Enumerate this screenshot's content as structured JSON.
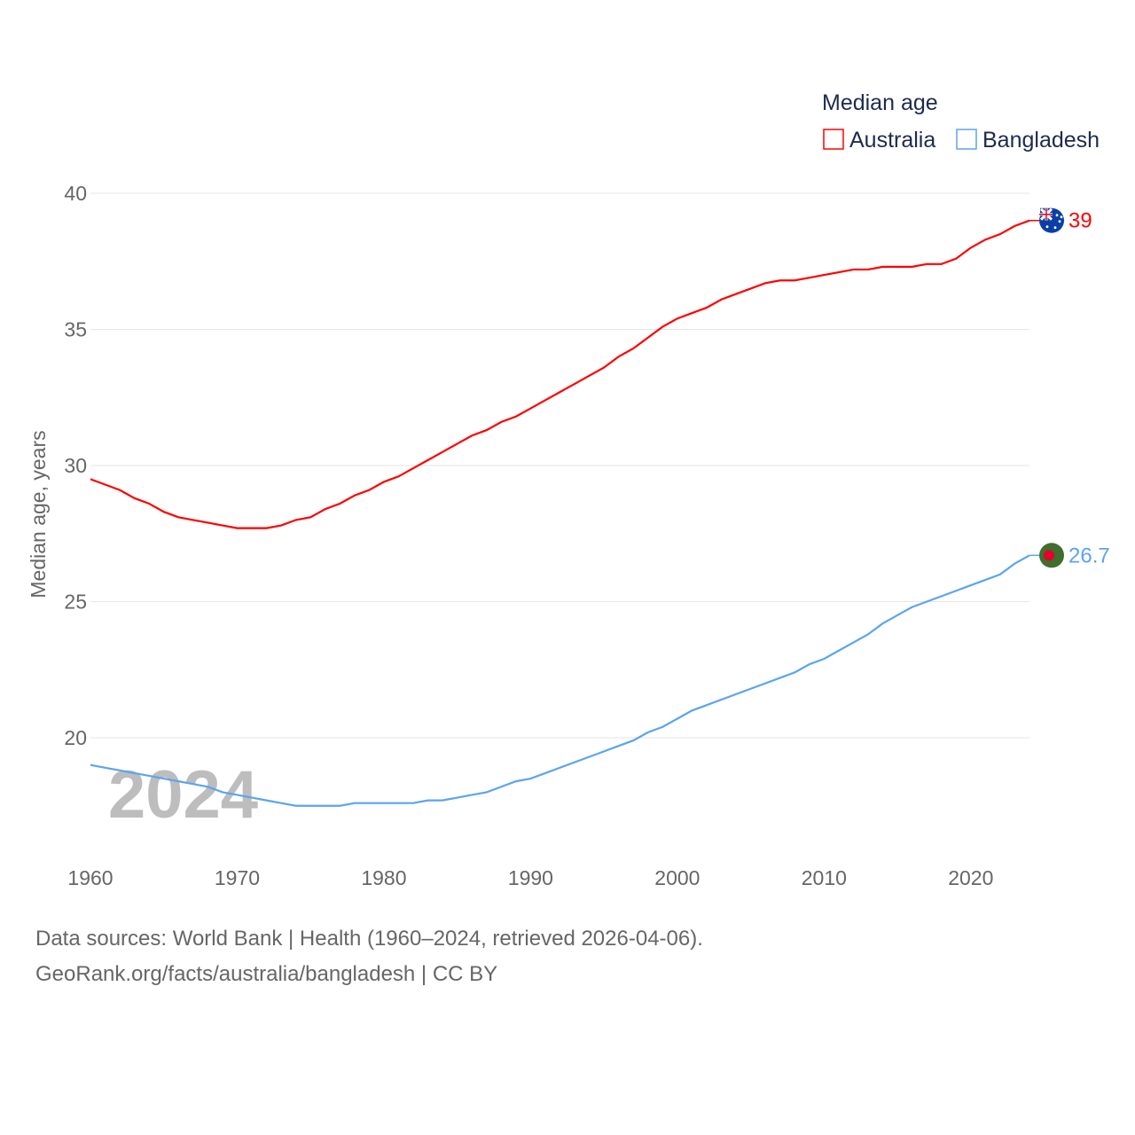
{
  "chart_data": {
    "type": "line",
    "title": "Median age",
    "xlabel": "",
    "ylabel": "Median age, years",
    "xlim": [
      1960,
      2024
    ],
    "ylim": [
      17,
      40
    ],
    "yticks": [
      20,
      25,
      30,
      35,
      40
    ],
    "xticks": [
      1960,
      1970,
      1980,
      1990,
      2000,
      2010,
      2020
    ],
    "grid": true,
    "legend_position": "top-right",
    "year_label": "2024",
    "x": [
      1960,
      1961,
      1962,
      1963,
      1964,
      1965,
      1966,
      1967,
      1968,
      1969,
      1970,
      1971,
      1972,
      1973,
      1974,
      1975,
      1976,
      1977,
      1978,
      1979,
      1980,
      1981,
      1982,
      1983,
      1984,
      1985,
      1986,
      1987,
      1988,
      1989,
      1990,
      1991,
      1992,
      1993,
      1994,
      1995,
      1996,
      1997,
      1998,
      1999,
      2000,
      2001,
      2002,
      2003,
      2004,
      2005,
      2006,
      2007,
      2008,
      2009,
      2010,
      2011,
      2012,
      2013,
      2014,
      2015,
      2016,
      2017,
      2018,
      2019,
      2020,
      2021,
      2022,
      2023,
      2024
    ],
    "series": [
      {
        "name": "Australia",
        "color": "#ff0000",
        "end_label": "39",
        "values": [
          29.5,
          29.3,
          29.1,
          28.8,
          28.6,
          28.3,
          28.1,
          28.0,
          27.9,
          27.8,
          27.7,
          27.7,
          27.7,
          27.8,
          28.0,
          28.1,
          28.4,
          28.6,
          28.9,
          29.1,
          29.4,
          29.6,
          29.9,
          30.2,
          30.5,
          30.8,
          31.1,
          31.3,
          31.6,
          31.8,
          32.1,
          32.4,
          32.7,
          33.0,
          33.3,
          33.6,
          34.0,
          34.3,
          34.7,
          35.1,
          35.4,
          35.6,
          35.8,
          36.1,
          36.3,
          36.5,
          36.7,
          36.8,
          36.8,
          36.9,
          37.0,
          37.1,
          37.2,
          37.2,
          37.3,
          37.3,
          37.3,
          37.4,
          37.4,
          37.6,
          38.0,
          38.3,
          38.5,
          38.8,
          39.0
        ]
      },
      {
        "name": "Bangladesh",
        "color": "#5ba4ef",
        "end_label": "26.7",
        "values": [
          19.0,
          18.9,
          18.8,
          18.7,
          18.6,
          18.5,
          18.4,
          18.3,
          18.2,
          18.0,
          17.9,
          17.8,
          17.7,
          17.6,
          17.5,
          17.5,
          17.5,
          17.5,
          17.6,
          17.6,
          17.6,
          17.6,
          17.6,
          17.7,
          17.7,
          17.8,
          17.9,
          18.0,
          18.2,
          18.4,
          18.5,
          18.7,
          18.9,
          19.1,
          19.3,
          19.5,
          19.7,
          19.9,
          20.2,
          20.4,
          20.7,
          21.0,
          21.2,
          21.4,
          21.6,
          21.8,
          22.0,
          22.2,
          22.4,
          22.7,
          22.9,
          23.2,
          23.5,
          23.8,
          24.2,
          24.5,
          24.8,
          25.0,
          25.2,
          25.4,
          25.6,
          25.8,
          26.0,
          26.4,
          26.7
        ]
      }
    ]
  },
  "footer": {
    "sources": "Data sources: World Bank | Health (1960–2024, retrieved 2026-04-06).",
    "credit": "GeoRank.org/facts/australia/bangladesh | CC BY"
  }
}
